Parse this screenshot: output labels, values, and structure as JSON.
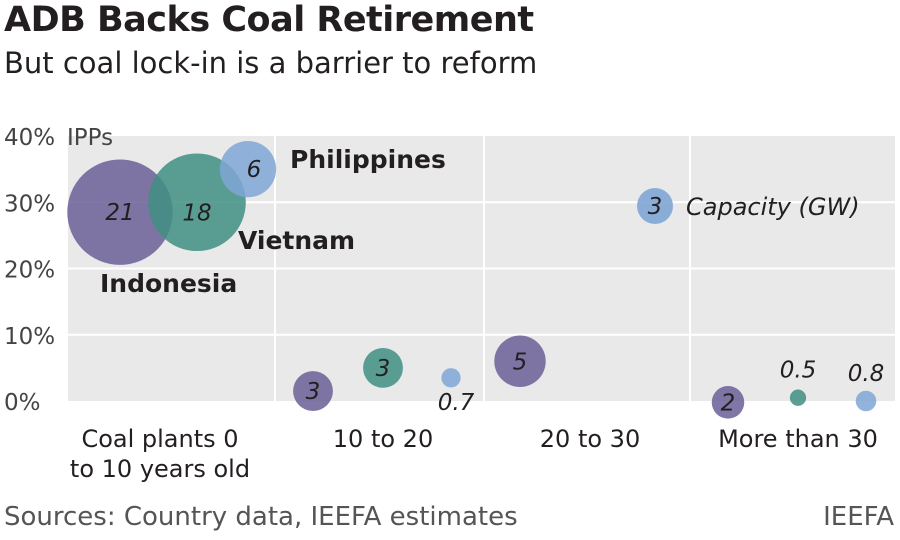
{
  "header": {
    "title": "ADB Backs Coal Retirement",
    "subtitle": "But coal lock-in is a barrier to reform"
  },
  "footer": {
    "source": "Sources: Country data, IEEFA estimates",
    "brand": "IEEFA"
  },
  "legend": {
    "capacity_label": "Capacity (GW)",
    "capacity_example_value": "3"
  },
  "colors": {
    "Indonesia": "#6b5f96",
    "Vietnam": "#3f8f82",
    "Philippines": "#7fa6d6",
    "background": "#e9e9e9",
    "grid": "#ffffff",
    "text": "#231f20"
  },
  "chart_data": {
    "type": "scatter",
    "title": "ADB Backs Coal Retirement",
    "subtitle": "But coal lock-in is a barrier to reform",
    "ylabel": "IPPs",
    "ylim": [
      0,
      40
    ],
    "y_ticks": [
      "0%",
      "10%",
      "20%",
      "30%",
      "40%"
    ],
    "categories": [
      "Coal plants 0 to 10 years old",
      "10 to 20",
      "20 to 30",
      "More than 30"
    ],
    "category_labels": [
      [
        "Coal plants 0",
        "to 10 years old"
      ],
      [
        "10 to 20"
      ],
      [
        "20 to 30"
      ],
      [
        "More than 30"
      ]
    ],
    "size_label": "Capacity (GW)",
    "grid": true,
    "series": [
      {
        "name": "Indonesia",
        "points": [
          {
            "category": "Coal plants 0 to 10 years old",
            "y": 28.5,
            "capacity": 21,
            "label": "21"
          },
          {
            "category": "10 to 20",
            "y": 1.5,
            "capacity": 3,
            "label": "3"
          },
          {
            "category": "20 to 30",
            "y": 6.0,
            "capacity": 5,
            "label": "5"
          },
          {
            "category": "More than 30",
            "y": -0.2,
            "capacity": 2,
            "label": "2"
          }
        ]
      },
      {
        "name": "Vietnam",
        "points": [
          {
            "category": "Coal plants 0 to 10 years old",
            "y": 30.0,
            "capacity": 18,
            "label": "18"
          },
          {
            "category": "10 to 20",
            "y": 5.0,
            "capacity": 3,
            "label": "3"
          },
          {
            "category": "More than 30",
            "y": 0.5,
            "capacity": 0.5,
            "label": "0.5"
          }
        ]
      },
      {
        "name": "Philippines",
        "points": [
          {
            "category": "Coal plants 0 to 10 years old",
            "y": 35.0,
            "capacity": 6,
            "label": "6"
          },
          {
            "category": "10 to 20",
            "y": 3.5,
            "capacity": 0.7,
            "label": "0.7"
          },
          {
            "category": "More than 30",
            "y": 0.0,
            "capacity": 0.8,
            "label": "0.8"
          }
        ]
      }
    ]
  }
}
